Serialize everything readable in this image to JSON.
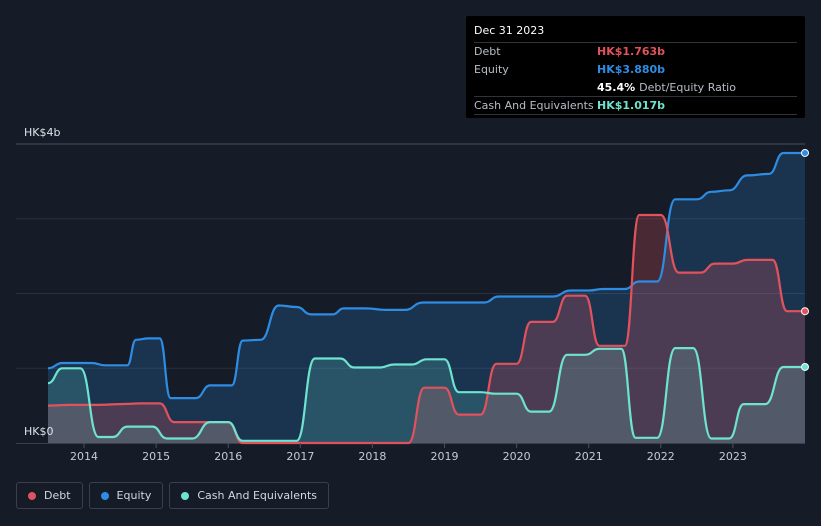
{
  "tooltip": {
    "date": "Dec 31 2023",
    "debt_label": "Debt",
    "debt_value": "HK$1.763b",
    "equity_label": "Equity",
    "equity_value": "HK$3.880b",
    "ratio_value": "45.4%",
    "ratio_label": "Debt/Equity Ratio",
    "cash_label": "Cash And Equivalents",
    "cash_value": "HK$1.017b"
  },
  "legend": {
    "debt": "Debt",
    "equity": "Equity",
    "cash": "Cash And Equivalents"
  },
  "colors": {
    "debt": "#e2525c",
    "equity": "#2e8de3",
    "cash": "#6ee3cf",
    "background": "#151b27"
  },
  "chart_data": {
    "type": "area",
    "title": "",
    "xlabel": "",
    "ylabel": "",
    "ylim": [
      0,
      4
    ],
    "y_unit": "HK$ billions",
    "y_axis_labels": [
      "HK$4b",
      "HK$0"
    ],
    "x_ticks": [
      "2014",
      "2015",
      "2016",
      "2017",
      "2018",
      "2019",
      "2020",
      "2021",
      "2022",
      "2023"
    ],
    "x_range": [
      2013.5,
      2024.0
    ],
    "series": [
      {
        "name": "Equity",
        "key": "equity",
        "points": [
          [
            2013.5,
            1.0
          ],
          [
            2013.7,
            1.07
          ],
          [
            2013.9,
            1.07
          ],
          [
            2014.1,
            1.07
          ],
          [
            2014.3,
            1.04
          ],
          [
            2014.5,
            1.04
          ],
          [
            2014.6,
            1.04
          ],
          [
            2014.72,
            1.38
          ],
          [
            2014.9,
            1.4
          ],
          [
            2015.05,
            1.4
          ],
          [
            2015.2,
            0.6
          ],
          [
            2015.45,
            0.6
          ],
          [
            2015.55,
            0.6
          ],
          [
            2015.75,
            0.77
          ],
          [
            2015.95,
            0.77
          ],
          [
            2016.05,
            0.77
          ],
          [
            2016.2,
            1.37
          ],
          [
            2016.45,
            1.38
          ],
          [
            2016.7,
            1.84
          ],
          [
            2016.95,
            1.82
          ],
          [
            2017.15,
            1.72
          ],
          [
            2017.45,
            1.72
          ],
          [
            2017.6,
            1.8
          ],
          [
            2017.9,
            1.8
          ],
          [
            2018.2,
            1.78
          ],
          [
            2018.45,
            1.78
          ],
          [
            2018.7,
            1.88
          ],
          [
            2019.2,
            1.88
          ],
          [
            2019.55,
            1.88
          ],
          [
            2019.75,
            1.96
          ],
          [
            2020.3,
            1.96
          ],
          [
            2020.5,
            1.96
          ],
          [
            2020.75,
            2.04
          ],
          [
            2021.0,
            2.04
          ],
          [
            2021.2,
            2.06
          ],
          [
            2021.5,
            2.06
          ],
          [
            2021.7,
            2.16
          ],
          [
            2021.95,
            2.16
          ],
          [
            2022.2,
            3.26
          ],
          [
            2022.5,
            3.26
          ],
          [
            2022.7,
            3.36
          ],
          [
            2022.95,
            3.38
          ],
          [
            2023.2,
            3.58
          ],
          [
            2023.5,
            3.6
          ],
          [
            2023.7,
            3.88
          ],
          [
            2024.0,
            3.88
          ]
        ]
      },
      {
        "name": "Debt",
        "key": "debt",
        "points": [
          [
            2013.5,
            0.5
          ],
          [
            2013.8,
            0.51
          ],
          [
            2014.2,
            0.51
          ],
          [
            2014.5,
            0.52
          ],
          [
            2014.8,
            0.53
          ],
          [
            2015.05,
            0.53
          ],
          [
            2015.25,
            0.28
          ],
          [
            2015.5,
            0.28
          ],
          [
            2015.8,
            0.28
          ],
          [
            2016.0,
            0.28
          ],
          [
            2016.2,
            0.0
          ],
          [
            2016.6,
            0.0
          ],
          [
            2017.0,
            0.0
          ],
          [
            2017.5,
            0.0
          ],
          [
            2018.0,
            0.0
          ],
          [
            2018.5,
            0.0
          ],
          [
            2018.72,
            0.74
          ],
          [
            2019.0,
            0.74
          ],
          [
            2019.2,
            0.38
          ],
          [
            2019.5,
            0.38
          ],
          [
            2019.72,
            1.06
          ],
          [
            2020.0,
            1.06
          ],
          [
            2020.2,
            1.62
          ],
          [
            2020.5,
            1.62
          ],
          [
            2020.7,
            1.97
          ],
          [
            2020.95,
            1.97
          ],
          [
            2021.15,
            1.3
          ],
          [
            2021.5,
            1.3
          ],
          [
            2021.7,
            3.05
          ],
          [
            2022.0,
            3.05
          ],
          [
            2022.25,
            2.28
          ],
          [
            2022.55,
            2.28
          ],
          [
            2022.75,
            2.4
          ],
          [
            2023.0,
            2.4
          ],
          [
            2023.2,
            2.45
          ],
          [
            2023.55,
            2.45
          ],
          [
            2023.75,
            1.763
          ],
          [
            2024.0,
            1.763
          ]
        ]
      },
      {
        "name": "Cash And Equivalents",
        "key": "cash",
        "points": [
          [
            2013.5,
            0.8
          ],
          [
            2013.7,
            1.0
          ],
          [
            2013.95,
            1.0
          ],
          [
            2014.2,
            0.08
          ],
          [
            2014.4,
            0.08
          ],
          [
            2014.6,
            0.22
          ],
          [
            2014.95,
            0.22
          ],
          [
            2015.15,
            0.06
          ],
          [
            2015.5,
            0.06
          ],
          [
            2015.75,
            0.28
          ],
          [
            2016.0,
            0.28
          ],
          [
            2016.2,
            0.03
          ],
          [
            2016.6,
            0.03
          ],
          [
            2016.95,
            0.03
          ],
          [
            2017.2,
            1.13
          ],
          [
            2017.55,
            1.13
          ],
          [
            2017.75,
            1.01
          ],
          [
            2018.1,
            1.01
          ],
          [
            2018.3,
            1.05
          ],
          [
            2018.55,
            1.05
          ],
          [
            2018.75,
            1.12
          ],
          [
            2019.0,
            1.12
          ],
          [
            2019.2,
            0.68
          ],
          [
            2019.5,
            0.68
          ],
          [
            2019.7,
            0.66
          ],
          [
            2020.0,
            0.66
          ],
          [
            2020.2,
            0.42
          ],
          [
            2020.45,
            0.42
          ],
          [
            2020.7,
            1.18
          ],
          [
            2020.95,
            1.18
          ],
          [
            2021.15,
            1.26
          ],
          [
            2021.45,
            1.26
          ],
          [
            2021.65,
            0.07
          ],
          [
            2021.95,
            0.07
          ],
          [
            2022.2,
            1.27
          ],
          [
            2022.45,
            1.27
          ],
          [
            2022.7,
            0.06
          ],
          [
            2022.95,
            0.06
          ],
          [
            2023.15,
            0.52
          ],
          [
            2023.45,
            0.52
          ],
          [
            2023.7,
            1.017
          ],
          [
            2024.0,
            1.017
          ]
        ]
      }
    ]
  }
}
